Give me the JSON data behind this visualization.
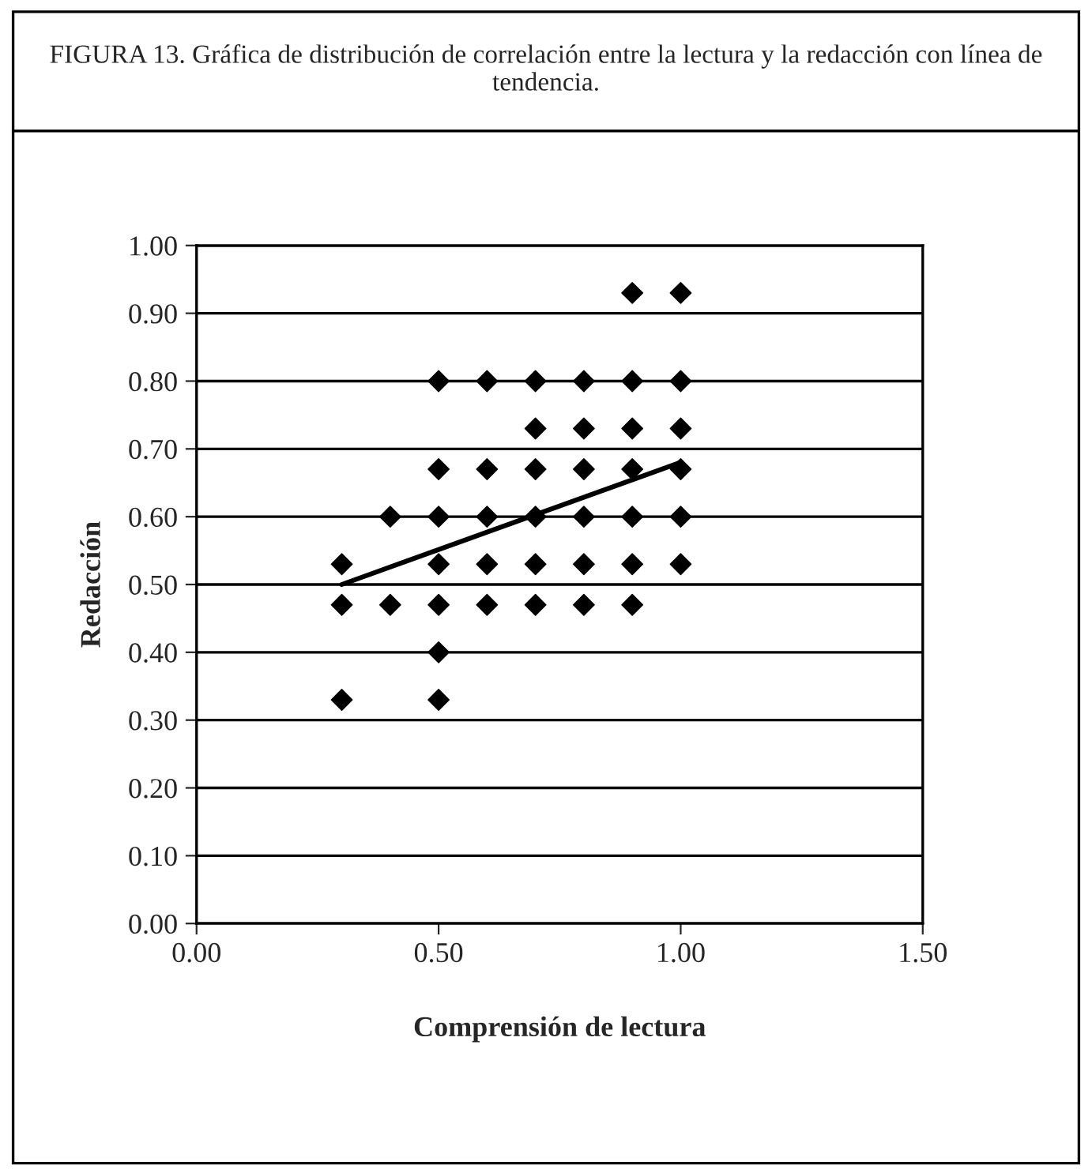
{
  "chart_data": {
    "type": "scatter",
    "title": "FIGURA 13. Gráfica de distribución de correlación entre la lectura y la redacción con línea de tendencia.",
    "xlabel": "Comprensión de lectura",
    "ylabel": "Redacción",
    "series": [
      {
        "marker": "diamond",
        "color": "#000000",
        "x": [
          0.9,
          1.0,
          0.5,
          0.6,
          0.7,
          0.8,
          0.9,
          1.0,
          0.7,
          0.8,
          0.9,
          1.0,
          0.5,
          0.6,
          0.7,
          0.8,
          0.9,
          1.0,
          0.4,
          0.5,
          0.6,
          0.7,
          0.8,
          0.9,
          1.0,
          0.3,
          0.5,
          0.6,
          0.7,
          0.8,
          0.9,
          1.0,
          0.3,
          0.4,
          0.5,
          0.6,
          0.7,
          0.8,
          0.9,
          0.5,
          0.3,
          0.5
        ],
        "values": [
          0.93,
          0.93,
          0.8,
          0.8,
          0.8,
          0.8,
          0.8,
          0.8,
          0.73,
          0.73,
          0.73,
          0.73,
          0.67,
          0.67,
          0.67,
          0.67,
          0.67,
          0.67,
          0.6,
          0.6,
          0.6,
          0.6,
          0.6,
          0.6,
          0.6,
          0.53,
          0.53,
          0.53,
          0.53,
          0.53,
          0.53,
          0.53,
          0.47,
          0.47,
          0.47,
          0.47,
          0.47,
          0.47,
          0.47,
          0.4,
          0.33,
          0.33
        ]
      },
      {
        "type": "line",
        "marker": "none",
        "color": "#000000",
        "x": [
          0.3,
          1.0
        ],
        "values": [
          0.5,
          0.68
        ]
      }
    ],
    "xlim": [
      0,
      1.5
    ],
    "xticks": [
      {
        "value": 0,
        "label": "0.00"
      },
      {
        "value": 0.5,
        "label": "0.50"
      },
      {
        "value": 1.0,
        "label": "1.00"
      },
      {
        "value": 1.5,
        "label": "1.50"
      }
    ],
    "ylim": [
      0,
      1.0
    ],
    "yticks": [
      {
        "value": 0,
        "label": "0.00"
      },
      {
        "value": 0.1,
        "label": "0.10"
      },
      {
        "value": 0.2,
        "label": "0.20"
      },
      {
        "value": 0.3,
        "label": "0.30"
      },
      {
        "value": 0.4,
        "label": "0.40"
      },
      {
        "value": 0.5,
        "label": "0.50"
      },
      {
        "value": 0.6,
        "label": "0.60"
      },
      {
        "value": 0.7,
        "label": "0.70"
      },
      {
        "value": 0.8,
        "label": "0.80"
      },
      {
        "value": 0.9,
        "label": "0.90"
      },
      {
        "value": 1.0,
        "label": "1.00"
      }
    ],
    "grid": "y",
    "line_style": "solid"
  }
}
